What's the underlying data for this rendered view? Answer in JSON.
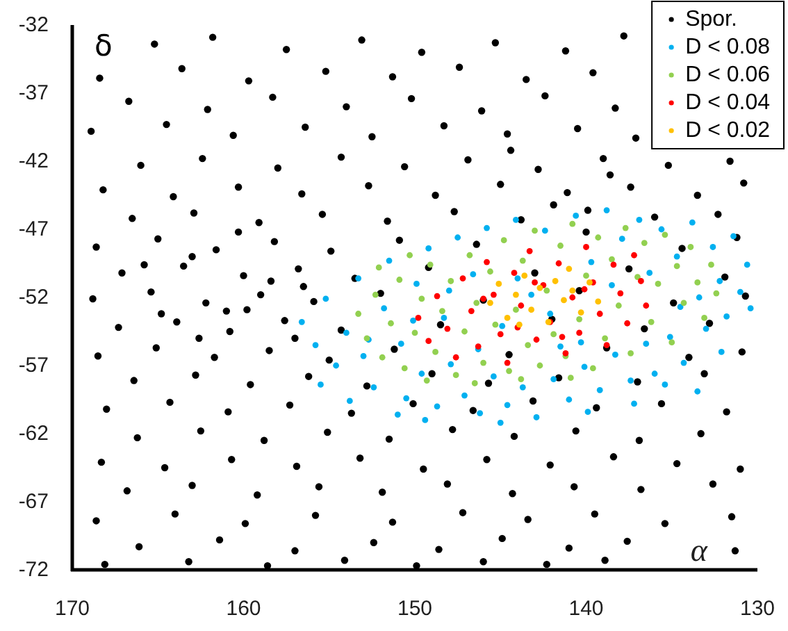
{
  "chart_data": {
    "type": "scatter",
    "xlabel": "α",
    "ylabel": "δ",
    "xlim": [
      170,
      130
    ],
    "ylim": [
      -72,
      -32
    ],
    "xticks": [
      170,
      160,
      150,
      140,
      130
    ],
    "yticks": [
      -32,
      -37,
      -42,
      -47,
      -52,
      -57,
      -62,
      -67,
      -72
    ],
    "legend": "top right",
    "marker": "circle",
    "series": [
      {
        "name": "Spor.",
        "color": "#000000",
        "x": [
          165.2,
          161.8,
          157.5,
          153.1,
          149.6,
          145.3,
          141.2,
          137.8,
          168.4,
          163.6,
          159.7,
          155.2,
          151.3,
          147.4,
          143.5,
          139.6,
          166.7,
          162.1,
          158.3,
          154.0,
          150.2,
          146.1,
          142.4,
          138.3,
          168.9,
          164.5,
          160.6,
          156.4,
          152.5,
          148.3,
          144.6,
          140.5,
          137.1,
          166.0,
          162.4,
          158.0,
          154.3,
          150.6,
          146.9,
          142.8,
          139.0,
          135.2,
          131.6,
          168.2,
          164.1,
          160.3,
          156.6,
          152.7,
          148.8,
          145.0,
          141.1,
          137.4,
          133.5,
          130.8,
          166.5,
          162.9,
          159.1,
          155.4,
          151.6,
          147.7,
          143.8,
          139.9,
          136.0,
          132.3,
          168.6,
          165.0,
          161.6,
          158.2,
          154.9,
          150.9,
          146.4,
          134.4,
          131.2,
          167.1,
          163.5,
          160.0,
          156.8,
          153.5,
          149.2,
          143.0,
          137.5,
          131.9,
          168.8,
          165.4,
          162.2,
          159.0,
          155.9,
          152.0,
          146.0,
          140.4,
          134.9,
          130.7,
          167.3,
          163.9,
          160.8,
          157.6,
          154.3,
          148.5,
          142.0,
          136.6,
          132.8,
          168.5,
          165.1,
          161.7,
          158.5,
          155.0,
          151.2,
          144.5,
          138.8,
          134.0,
          130.9,
          166.4,
          162.8,
          159.6,
          156.2,
          152.8,
          149.0,
          145.7,
          141.6,
          137.0,
          133.1,
          168.0,
          164.3,
          160.9,
          157.3,
          153.7,
          150.1,
          146.6,
          143.1,
          139.4,
          135.6,
          131.8,
          166.2,
          162.5,
          158.8,
          155.1,
          151.5,
          147.8,
          144.2,
          140.6,
          136.9,
          133.3,
          168.3,
          164.6,
          160.7,
          156.9,
          153.2,
          149.5,
          145.8,
          142.1,
          138.4,
          134.7,
          131.0,
          166.8,
          163.0,
          159.2,
          155.6,
          151.9,
          148.1,
          144.3,
          140.7,
          136.8,
          132.6,
          168.6,
          164.0,
          159.9,
          155.8,
          151.3,
          147.2,
          143.4,
          139.5,
          135.4,
          131.5,
          166.1,
          161.4,
          157.0,
          152.4,
          148.6,
          144.9,
          141.0,
          137.6,
          131.3,
          168.1,
          163.2,
          158.6,
          154.1,
          149.9,
          146.0,
          142.3,
          138.9,
          163.0,
          161.0,
          158.4,
          164.8,
          157.0,
          160.3,
          156.5,
          162.6,
          159.8,
          165.8,
          141.9,
          138.6,
          144.4,
          140.0
        ],
        "values": [
          -33.4,
          -32.9,
          -33.8,
          -33.1,
          -34.0,
          -33.3,
          -33.9,
          -32.8,
          -35.9,
          -35.2,
          -36.1,
          -35.4,
          -35.8,
          -35.1,
          -36.0,
          -35.5,
          -37.6,
          -38.2,
          -37.3,
          -38.0,
          -37.4,
          -38.3,
          -37.2,
          -38.1,
          -39.8,
          -39.3,
          -40.1,
          -39.5,
          -40.2,
          -39.4,
          -40.0,
          -39.6,
          -40.3,
          -42.3,
          -41.8,
          -42.5,
          -41.7,
          -42.4,
          -41.9,
          -42.6,
          -41.8,
          -42.3,
          -42.0,
          -44.1,
          -44.6,
          -43.9,
          -44.4,
          -43.8,
          -44.5,
          -43.7,
          -44.3,
          -43.9,
          -44.5,
          -43.6,
          -46.2,
          -45.8,
          -46.5,
          -45.9,
          -46.4,
          -45.7,
          -46.3,
          -45.6,
          -46.1,
          -45.9,
          -48.3,
          -47.7,
          -48.5,
          -47.9,
          -48.6,
          -47.8,
          -48.1,
          -48.4,
          -47.6,
          -50.2,
          -49.7,
          -50.4,
          -49.9,
          -50.6,
          -49.8,
          -50.2,
          -49.9,
          -50.5,
          -52.1,
          -51.6,
          -52.4,
          -51.8,
          -52.3,
          -51.7,
          -52.2,
          -51.5,
          -52.4,
          -51.9,
          -54.2,
          -53.8,
          -54.5,
          -53.7,
          -54.4,
          -54.0,
          -53.6,
          -54.3,
          -53.9,
          -56.3,
          -55.7,
          -56.4,
          -55.9,
          -56.6,
          -55.8,
          -56.2,
          -55.7,
          -56.4,
          -56.0,
          -58.1,
          -57.7,
          -58.4,
          -57.8,
          -58.5,
          -57.6,
          -58.3,
          -57.9,
          -58.2,
          -57.6,
          -60.2,
          -59.7,
          -60.4,
          -59.9,
          -60.5,
          -59.8,
          -60.3,
          -59.6,
          -60.1,
          -59.8,
          -60.4,
          -62.3,
          -61.8,
          -62.5,
          -61.9,
          -62.4,
          -61.7,
          -62.2,
          -61.8,
          -62.5,
          -62.0,
          -64.1,
          -64.5,
          -63.9,
          -64.4,
          -63.8,
          -64.6,
          -63.9,
          -64.3,
          -63.7,
          -64.2,
          -64.6,
          -66.2,
          -65.8,
          -66.5,
          -65.9,
          -66.3,
          -65.7,
          -66.4,
          -65.9,
          -66.1,
          -65.7,
          -68.4,
          -67.9,
          -68.6,
          -68.0,
          -68.5,
          -67.8,
          -68.3,
          -67.9,
          -68.6,
          -68.1,
          -70.3,
          -69.8,
          -70.6,
          -70.0,
          -70.5,
          -69.7,
          -70.4,
          -69.9,
          -70.6,
          -71.6,
          -71.4,
          -71.7,
          -71.3,
          -71.7,
          -71.4,
          -71.6,
          -71.3,
          -49.0,
          -53.0,
          -50.8,
          -53.2,
          -55.0,
          -47.2,
          -51.2,
          -55.0,
          -52.9,
          -49.6,
          -45.2,
          -43.0,
          -41.2,
          -47.2
        ]
      },
      {
        "name": "D < 0.08",
        "color": "#00b0f0",
        "x": [
          156.6,
          155.8,
          155.2,
          154.6,
          154.0,
          153.3,
          153.0,
          152.4,
          151.8,
          151.5,
          150.8,
          150.5,
          149.9,
          149.6,
          149.2,
          148.7,
          148.3,
          147.9,
          147.5,
          147.1,
          146.6,
          146.2,
          145.8,
          145.4,
          144.9,
          144.6,
          144.1,
          143.7,
          143.2,
          142.9,
          142.4,
          141.9,
          141.5,
          141.0,
          140.6,
          140.1,
          139.7,
          139.2,
          138.8,
          138.3,
          137.9,
          137.4,
          136.9,
          136.5,
          136.0,
          135.6,
          135.1,
          134.7,
          134.3,
          133.8,
          133.4,
          133.0,
          132.6,
          132.2,
          131.8,
          131.4,
          131.0,
          130.6,
          130.4,
          152.7,
          150.1,
          148.0,
          146.3,
          144.0,
          142.1,
          140.3,
          138.5,
          136.3,
          134.5,
          155.5,
          153.8,
          151.0,
          149.4,
          145.0,
          139.9,
          137.2,
          135.4,
          133.5,
          132.1
        ],
        "values": [
          -53.8,
          -55.5,
          -52.1,
          -57.0,
          -54.6,
          -50.6,
          -56.3,
          -58.6,
          -52.8,
          -49.3,
          -55.4,
          -59.4,
          -51.0,
          -57.6,
          -48.4,
          -60.0,
          -53.5,
          -56.9,
          -47.6,
          -59.2,
          -50.3,
          -60.5,
          -46.9,
          -57.8,
          -54.1,
          -59.9,
          -46.3,
          -58.6,
          -51.8,
          -60.8,
          -47.1,
          -58.0,
          -55.6,
          -59.5,
          -46.0,
          -57.1,
          -49.4,
          -58.8,
          -45.6,
          -56.2,
          -47.7,
          -58.1,
          -46.3,
          -55.4,
          -57.6,
          -47.0,
          -54.9,
          -49.0,
          -56.8,
          -46.5,
          -52.0,
          -54.3,
          -48.3,
          -50.8,
          -53.4,
          -47.5,
          -51.6,
          -49.6,
          -52.8,
          -55.1,
          -53.7,
          -51.5,
          -55.8,
          -50.6,
          -53.2,
          -55.3,
          -51.1,
          -50.2,
          -52.7,
          -58.4,
          -59.6,
          -60.6,
          -61.0,
          -61.2,
          -60.4,
          -59.8,
          -58.4,
          -58.9,
          -56.0
        ]
      },
      {
        "name": "D < 0.06",
        "color": "#92d050",
        "x": [
          153.3,
          152.8,
          152.3,
          151.9,
          151.4,
          150.9,
          150.6,
          150.0,
          149.6,
          149.1,
          148.8,
          148.4,
          147.9,
          147.6,
          147.1,
          146.8,
          146.4,
          146.0,
          145.6,
          145.3,
          144.8,
          144.5,
          144.1,
          143.7,
          143.4,
          143.0,
          142.7,
          142.3,
          141.9,
          141.5,
          141.2,
          140.8,
          140.4,
          140.0,
          139.6,
          139.3,
          138.9,
          138.5,
          138.1,
          137.7,
          137.4,
          137.0,
          136.6,
          136.2,
          135.8,
          135.4,
          135.0,
          134.7,
          134.3,
          133.9,
          133.5,
          133.1,
          132.7,
          132.4,
          149.3,
          146.5,
          143.8,
          140.9,
          152.1,
          150.3
        ],
        "values": [
          -53.2,
          -55.0,
          -51.8,
          -56.4,
          -53.9,
          -50.7,
          -57.2,
          -54.6,
          -52.1,
          -49.6,
          -56.0,
          -53.0,
          -50.8,
          -57.7,
          -54.5,
          -48.9,
          -52.4,
          -56.8,
          -50.1,
          -54.0,
          -47.8,
          -57.4,
          -52.9,
          -49.3,
          -55.5,
          -47.1,
          -57.0,
          -51.5,
          -54.7,
          -48.2,
          -56.3,
          -46.6,
          -53.6,
          -50.4,
          -57.2,
          -47.6,
          -55.0,
          -49.2,
          -52.6,
          -46.9,
          -56.1,
          -50.5,
          -48.0,
          -53.8,
          -51.0,
          -47.4,
          -55.3,
          -49.7,
          -52.4,
          -48.3,
          -50.9,
          -53.5,
          -49.6,
          -51.7,
          -58.1,
          -58.3,
          -58.0,
          -57.9,
          -49.8,
          -48.9
        ]
      },
      {
        "name": "D < 0.04",
        "color": "#ff0000",
        "x": [
          149.8,
          149.2,
          148.7,
          148.1,
          147.6,
          147.2,
          146.7,
          146.3,
          145.8,
          145.4,
          145.0,
          144.6,
          144.2,
          143.8,
          143.3,
          142.9,
          142.5,
          142.1,
          141.6,
          141.2,
          140.8,
          140.4,
          140.0,
          139.6,
          139.2,
          138.8,
          138.4,
          138.0,
          137.6,
          137.2,
          136.8,
          136.5,
          146.0,
          143.0,
          140.1,
          144.0,
          141.4
        ],
        "values": [
          -53.5,
          -55.2,
          -51.9,
          -54.3,
          -56.4,
          -50.6,
          -53.0,
          -55.6,
          -49.4,
          -51.8,
          -54.7,
          -56.8,
          -50.2,
          -52.6,
          -48.6,
          -55.1,
          -51.1,
          -53.8,
          -49.5,
          -56.1,
          -52.0,
          -54.6,
          -48.3,
          -50.9,
          -53.2,
          -55.5,
          -49.6,
          -51.7,
          -53.9,
          -48.9,
          -50.8,
          -52.6,
          -52.1,
          -50.9,
          -51.4,
          -54.2,
          -54.9
        ]
      },
      {
        "name": "D < 0.02",
        "color": "#ffc000",
        "x": [
          145.6,
          145.1,
          144.6,
          144.1,
          143.6,
          143.2,
          142.7,
          142.2,
          141.8,
          141.3,
          140.8,
          140.3,
          139.8,
          139.3,
          143.9,
          141.0
        ],
        "values": [
          -52.4,
          -51.0,
          -53.5,
          -51.8,
          -50.4,
          -52.9,
          -51.3,
          -53.8,
          -50.8,
          -52.2,
          -51.5,
          -53.1,
          -50.9,
          -52.3,
          -54.0,
          -49.9
        ]
      }
    ]
  }
}
